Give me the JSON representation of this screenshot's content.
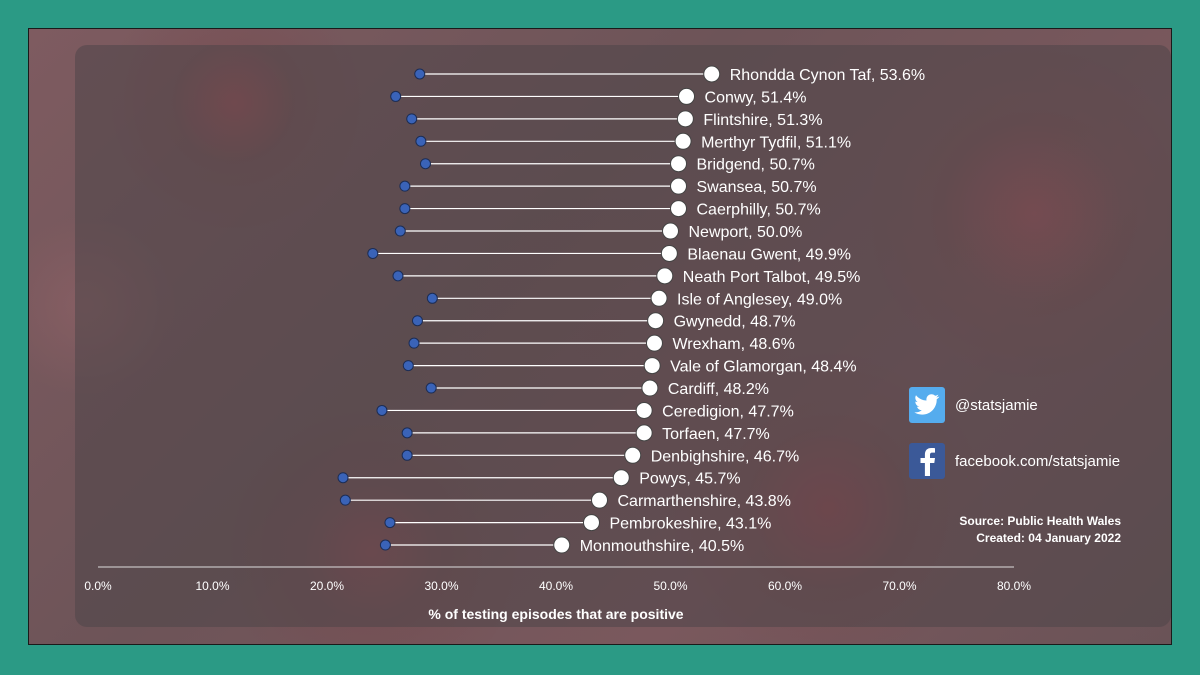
{
  "chart_data": {
    "type": "dumbbell",
    "xlabel": "% of testing episodes that are positive",
    "xlim": [
      0,
      80
    ],
    "x_ticks": [
      "0.0%",
      "10.0%",
      "20.0%",
      "30.0%",
      "40.0%",
      "50.0%",
      "60.0%",
      "70.0%",
      "80.0%"
    ],
    "series": [
      {
        "name": "previous (blue dot)",
        "color": "#3a63b8"
      },
      {
        "name": "latest (white dot)",
        "color": "#ffffff"
      }
    ],
    "rows": [
      {
        "area": "Rhondda Cynon Taf",
        "label": "Rhondda Cynon Taf, 53.6%",
        "start": 28.1,
        "end": 53.6
      },
      {
        "area": "Conwy",
        "label": "Conwy, 51.4%",
        "start": 26.0,
        "end": 51.4
      },
      {
        "area": "Flintshire",
        "label": "Flintshire, 51.3%",
        "start": 27.4,
        "end": 51.3
      },
      {
        "area": "Merthyr Tydfil",
        "label": "Merthyr Tydfil, 51.1%",
        "start": 28.2,
        "end": 51.1
      },
      {
        "area": "Bridgend",
        "label": "Bridgend, 50.7%",
        "start": 28.6,
        "end": 50.7
      },
      {
        "area": "Swansea",
        "label": "Swansea, 50.7%",
        "start": 26.8,
        "end": 50.7
      },
      {
        "area": "Caerphilly",
        "label": "Caerphilly, 50.7%",
        "start": 26.8,
        "end": 50.7
      },
      {
        "area": "Newport",
        "label": "Newport, 50.0%",
        "start": 26.4,
        "end": 50.0
      },
      {
        "area": "Blaenau Gwent",
        "label": "Blaenau Gwent, 49.9%",
        "start": 24.0,
        "end": 49.9
      },
      {
        "area": "Neath Port Talbot",
        "label": "Neath Port Talbot, 49.5%",
        "start": 26.2,
        "end": 49.5
      },
      {
        "area": "Isle of Anglesey",
        "label": "Isle of Anglesey, 49.0%",
        "start": 29.2,
        "end": 49.0
      },
      {
        "area": "Gwynedd",
        "label": "Gwynedd, 48.7%",
        "start": 27.9,
        "end": 48.7
      },
      {
        "area": "Wrexham",
        "label": "Wrexham, 48.6%",
        "start": 27.6,
        "end": 48.6
      },
      {
        "area": "Vale of Glamorgan",
        "label": "Vale of Glamorgan, 48.4%",
        "start": 27.1,
        "end": 48.4
      },
      {
        "area": "Cardiff",
        "label": "Cardiff, 48.2%",
        "start": 29.1,
        "end": 48.2
      },
      {
        "area": "Ceredigion",
        "label": "Ceredigion, 47.7%",
        "start": 24.8,
        "end": 47.7
      },
      {
        "area": "Torfaen",
        "label": "Torfaen, 47.7%",
        "start": 27.0,
        "end": 47.7
      },
      {
        "area": "Denbighshire",
        "label": "Denbighshire, 46.7%",
        "start": 27.0,
        "end": 46.7
      },
      {
        "area": "Powys",
        "label": "Powys, 45.7%",
        "start": 21.4,
        "end": 45.7
      },
      {
        "area": "Carmarthenshire",
        "label": "Carmarthenshire, 43.8%",
        "start": 21.6,
        "end": 43.8
      },
      {
        "area": "Pembrokeshire",
        "label": "Pembrokeshire, 43.1%",
        "start": 25.5,
        "end": 43.1
      },
      {
        "area": "Monmouthshire",
        "label": "Monmouthshire, 40.5%",
        "start": 25.1,
        "end": 40.5
      }
    ]
  },
  "social": {
    "twitter_handle": "@statsjamie",
    "facebook_page": "facebook.com/statsjamie"
  },
  "source": {
    "line1": "Source: Public Health Wales",
    "line2": "Created: 04 January 2022"
  },
  "colors": {
    "background": "#2b9a85",
    "start_dot": "#3a63b8",
    "end_dot": "#ffffff",
    "twitter": "#55acee",
    "facebook": "#3b5998"
  }
}
